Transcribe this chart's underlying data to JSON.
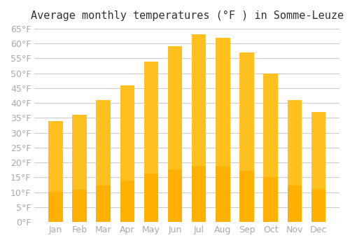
{
  "title": "Average monthly temperatures (°F ) in Somme-Leuze",
  "months": [
    "Jan",
    "Feb",
    "Mar",
    "Apr",
    "May",
    "Jun",
    "Jul",
    "Aug",
    "Sep",
    "Oct",
    "Nov",
    "Dec"
  ],
  "values": [
    34,
    36,
    41,
    46,
    54,
    59,
    63,
    62,
    57,
    50,
    41,
    37
  ],
  "bar_color_top": "#FFC020",
  "bar_color_bottom": "#FFB000",
  "background_color": "#FFFFFF",
  "grid_color": "#CCCCCC",
  "ylim": [
    0,
    65
  ],
  "yticks": [
    0,
    5,
    10,
    15,
    20,
    25,
    30,
    35,
    40,
    45,
    50,
    55,
    60,
    65
  ],
  "title_fontsize": 11,
  "tick_fontsize": 9,
  "tick_font_color": "#AAAAAA"
}
